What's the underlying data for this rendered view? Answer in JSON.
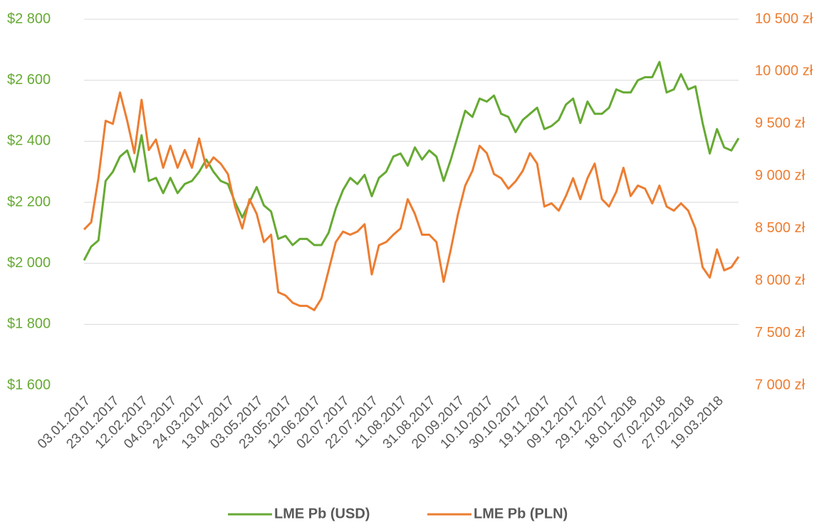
{
  "chart_data": {
    "type": "line",
    "categories": [
      "03.01.2017",
      null,
      null,
      null,
      "23.01.2017",
      null,
      null,
      null,
      "12.02.2017",
      null,
      null,
      null,
      "04.03.2017",
      null,
      null,
      null,
      "24.03.2017",
      null,
      null,
      null,
      "13.04.2017",
      null,
      null,
      null,
      "03.05.2017",
      null,
      null,
      null,
      "23.05.2017",
      null,
      null,
      null,
      "12.06.2017",
      null,
      null,
      null,
      "02.07.2017",
      null,
      null,
      null,
      "22.07.2017",
      null,
      null,
      null,
      "11.08.2017",
      null,
      null,
      null,
      "31.08.2017",
      null,
      null,
      null,
      "20.09.2017",
      null,
      null,
      null,
      "10.10.2017",
      null,
      null,
      null,
      "30.10.2017",
      null,
      null,
      null,
      "19.11.2017",
      null,
      null,
      null,
      "09.12.2017",
      null,
      null,
      null,
      "29.12.2017",
      null,
      null,
      null,
      "18.01.2018",
      null,
      null,
      null,
      "07.02.2018",
      null,
      null,
      null,
      "27.02.2018",
      null,
      null,
      null,
      "19.03.2018",
      null,
      null,
      null
    ],
    "series": [
      {
        "name": "LME Pb (USD)",
        "color": "#66aa33",
        "axis": "y",
        "values": [
          2010,
          2055,
          2075,
          2270,
          2300,
          2350,
          2370,
          2300,
          2420,
          2270,
          2280,
          2230,
          2280,
          2230,
          2260,
          2270,
          2300,
          2340,
          2300,
          2270,
          2260,
          2200,
          2150,
          2200,
          2250,
          2190,
          2170,
          2080,
          2090,
          2060,
          2080,
          2080,
          2060,
          2060,
          2100,
          2180,
          2240,
          2280,
          2260,
          2290,
          2220,
          2280,
          2300,
          2350,
          2360,
          2320,
          2380,
          2340,
          2370,
          2350,
          2270,
          2340,
          2420,
          2500,
          2480,
          2540,
          2530,
          2550,
          2490,
          2480,
          2430,
          2470,
          2490,
          2510,
          2440,
          2450,
          2470,
          2520,
          2540,
          2460,
          2530,
          2490,
          2490,
          2510,
          2570,
          2560,
          2560,
          2600,
          2610,
          2610,
          2660,
          2560,
          2570,
          2620,
          2570,
          2580,
          2460,
          2360,
          2440,
          2380,
          2370,
          2410
        ]
      },
      {
        "name": "LME Pb (PLN)",
        "color": "#ed7d31",
        "axis": "y2",
        "values": [
          8490,
          8560,
          8980,
          9530,
          9500,
          9800,
          9530,
          9220,
          9730,
          9250,
          9350,
          9080,
          9290,
          9080,
          9250,
          9080,
          9360,
          9080,
          9180,
          9120,
          9020,
          8710,
          8500,
          8780,
          8640,
          8370,
          8440,
          7890,
          7860,
          7790,
          7760,
          7760,
          7720,
          7830,
          8100,
          8370,
          8470,
          8440,
          8470,
          8540,
          8060,
          8340,
          8370,
          8440,
          8500,
          8780,
          8640,
          8440,
          8440,
          8370,
          7990,
          8300,
          8640,
          8910,
          9050,
          9290,
          9220,
          9020,
          8980,
          8880,
          8950,
          9050,
          9220,
          9120,
          8710,
          8740,
          8670,
          8810,
          8980,
          8780,
          8980,
          9120,
          8780,
          8710,
          8850,
          9080,
          8810,
          8910,
          8880,
          8740,
          8910,
          8710,
          8670,
          8740,
          8670,
          8500,
          8130,
          8030,
          8300,
          8100,
          8130,
          8230
        ]
      }
    ],
    "ylim": [
      1600,
      2800
    ],
    "yticks": [
      {
        "value": 1600,
        "label": "$1 600"
      },
      {
        "value": 1800,
        "label": "$1 800"
      },
      {
        "value": 2000,
        "label": "$2 000"
      },
      {
        "value": 2200,
        "label": "$2 200"
      },
      {
        "value": 2400,
        "label": "$2 400"
      },
      {
        "value": 2600,
        "label": "$2 600"
      },
      {
        "value": 2800,
        "label": "$2 800"
      }
    ],
    "y2lim": [
      7000,
      10500
    ],
    "y2ticks": [
      {
        "value": 7000,
        "label": "7 000 zł"
      },
      {
        "value": 7500,
        "label": "7 500 zł"
      },
      {
        "value": 8000,
        "label": "8 000 zł"
      },
      {
        "value": 8500,
        "label": "8 500 zł"
      },
      {
        "value": 9000,
        "label": "9 000 zł"
      },
      {
        "value": 9500,
        "label": "9 500 zł"
      },
      {
        "value": 10000,
        "label": "10 000 zł"
      },
      {
        "value": 10500,
        "label": "10 500 zł"
      }
    ],
    "grid": true,
    "legend": "bottom"
  }
}
